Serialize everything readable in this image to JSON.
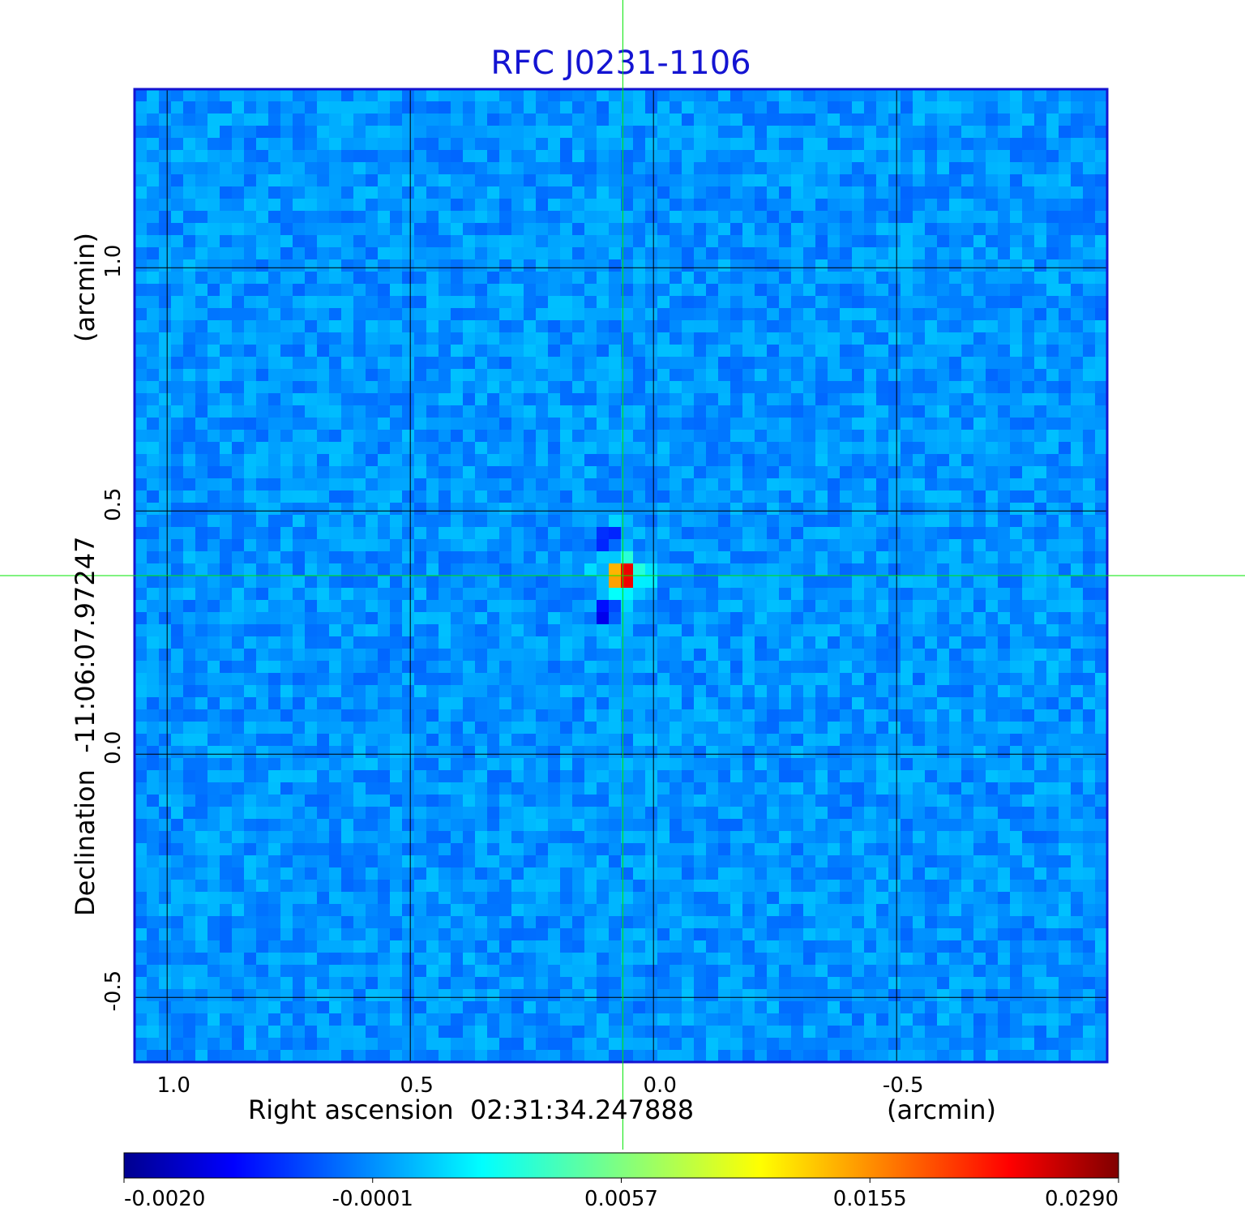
{
  "chart_data": {
    "type": "heatmap",
    "title": "RFC J0231-1106",
    "xlabel": "Right ascension  02:31:34.247888",
    "xunit": "(arcmin)",
    "ylabel": "Declination  -11:06:07.97247",
    "yunit": "(arcmin)",
    "xlim": [
      1.067,
      -0.933
    ],
    "ylim": [
      -0.633,
      1.367
    ],
    "x_reversed": true,
    "xticks": [
      {
        "value": 1.0,
        "label": "1.0"
      },
      {
        "value": 0.5,
        "label": "0.5"
      },
      {
        "value": 0.0,
        "label": "0.0"
      },
      {
        "value": -0.5,
        "label": "-0.5"
      }
    ],
    "yticks": [
      {
        "value": 1.0,
        "label": "1.0"
      },
      {
        "value": 0.5,
        "label": "0.5"
      },
      {
        "value": 0.0,
        "label": "0.0"
      },
      {
        "value": -0.5,
        "label": "-0.5"
      }
    ],
    "grid": true,
    "crosshair": {
      "x": 0.063,
      "y": 0.367,
      "color": "#00e600"
    },
    "source_peak": {
      "x": 0.063,
      "y": 0.367,
      "value": 0.029
    },
    "colorbar": {
      "colormap": "jet",
      "ticks": [
        {
          "value": -0.002,
          "label": "-0.0020"
        },
        {
          "value": -0.0001,
          "label": "-0.0001"
        },
        {
          "value": 0.0057,
          "label": "0.0057"
        },
        {
          "value": 0.0155,
          "label": "0.0155"
        },
        {
          "value": 0.029,
          "label": "0.0290"
        }
      ]
    },
    "colors": {
      "title": "#1414d2",
      "frame": "#1414d2",
      "grid": "#000000",
      "crosshair": "#00e600",
      "background_noise": "#1e90ff"
    }
  }
}
